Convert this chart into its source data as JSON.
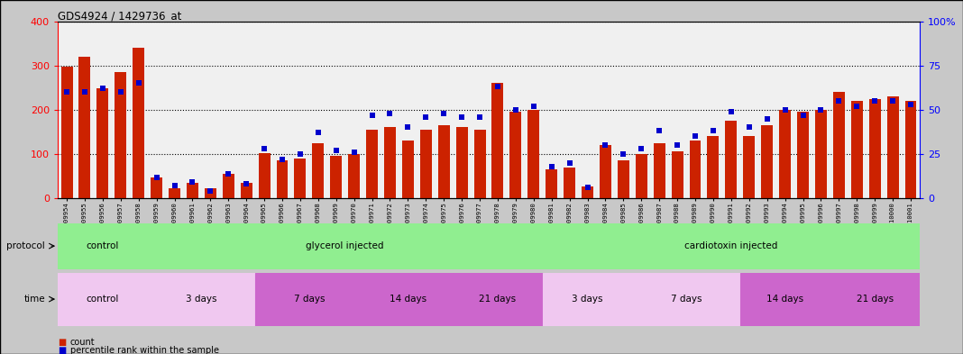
{
  "title": "GDS4924 / 1429736_at",
  "samples": [
    "GSM1109954",
    "GSM1109955",
    "GSM1109956",
    "GSM1109957",
    "GSM1109958",
    "GSM1109959",
    "GSM1109960",
    "GSM1109961",
    "GSM1109962",
    "GSM1109963",
    "GSM1109964",
    "GSM1109965",
    "GSM1109966",
    "GSM1109967",
    "GSM1109968",
    "GSM1109969",
    "GSM1109970",
    "GSM1109971",
    "GSM1109972",
    "GSM1109973",
    "GSM1109974",
    "GSM1109975",
    "GSM1109976",
    "GSM1109977",
    "GSM1109978",
    "GSM1109979",
    "GSM1109980",
    "GSM1109981",
    "GSM1109982",
    "GSM1109983",
    "GSM1109984",
    "GSM1109985",
    "GSM1109986",
    "GSM1109987",
    "GSM1109988",
    "GSM1109989",
    "GSM1109990",
    "GSM1109991",
    "GSM1109992",
    "GSM1109993",
    "GSM1109994",
    "GSM1109995",
    "GSM1109996",
    "GSM1109997",
    "GSM1109998",
    "GSM1109999",
    "GSM1110000",
    "GSM1110001"
  ],
  "counts": [
    297,
    320,
    248,
    285,
    340,
    47,
    22,
    35,
    23,
    55,
    35,
    102,
    85,
    90,
    125,
    95,
    100,
    155,
    160,
    130,
    155,
    165,
    160,
    155,
    260,
    195,
    200,
    65,
    70,
    27,
    120,
    85,
    100,
    125,
    105,
    130,
    140,
    175,
    140,
    165,
    200,
    195,
    200,
    240,
    220,
    225,
    230,
    220
  ],
  "percentiles": [
    60,
    60,
    62,
    60,
    65,
    12,
    7,
    9,
    4,
    14,
    8,
    28,
    22,
    25,
    37,
    27,
    26,
    47,
    48,
    40,
    46,
    48,
    46,
    46,
    63,
    50,
    52,
    18,
    20,
    6,
    30,
    25,
    28,
    38,
    30,
    35,
    38,
    49,
    40,
    45,
    50,
    47,
    50,
    55,
    52,
    55,
    55,
    53
  ],
  "bar_color": "#CC2200",
  "dot_color": "#0000CC",
  "ylim_left": [
    0,
    400
  ],
  "ylim_right": [
    0,
    100
  ],
  "yticks_left": [
    0,
    100,
    200,
    300,
    400
  ],
  "yticks_right": [
    0,
    25,
    50,
    75,
    100
  ],
  "bg_color": "#C8C8C8",
  "plot_bg_color": "#F0F0F0",
  "tick_bg_color": "#C8C8C8",
  "protocol_groups": [
    {
      "label": "control",
      "start": 0,
      "end": 4,
      "color": "#90EE90"
    },
    {
      "label": "glycerol injected",
      "start": 5,
      "end": 26,
      "color": "#90EE90"
    },
    {
      "label": "cardiotoxin injected",
      "start": 27,
      "end": 47,
      "color": "#90EE90"
    }
  ],
  "time_groups": [
    {
      "label": "control",
      "start": 0,
      "end": 4,
      "color": "#F0C8F0"
    },
    {
      "label": "3 days",
      "start": 5,
      "end": 10,
      "color": "#F0C8F0"
    },
    {
      "label": "7 days",
      "start": 11,
      "end": 16,
      "color": "#CC66CC"
    },
    {
      "label": "14 days",
      "start": 17,
      "end": 21,
      "color": "#CC66CC"
    },
    {
      "label": "21 days",
      "start": 22,
      "end": 26,
      "color": "#CC66CC"
    },
    {
      "label": "3 days",
      "start": 27,
      "end": 31,
      "color": "#F0C8F0"
    },
    {
      "label": "7 days",
      "start": 32,
      "end": 37,
      "color": "#F0C8F0"
    },
    {
      "label": "14 days",
      "start": 38,
      "end": 42,
      "color": "#CC66CC"
    },
    {
      "label": "21 days",
      "start": 43,
      "end": 47,
      "color": "#CC66CC"
    }
  ]
}
